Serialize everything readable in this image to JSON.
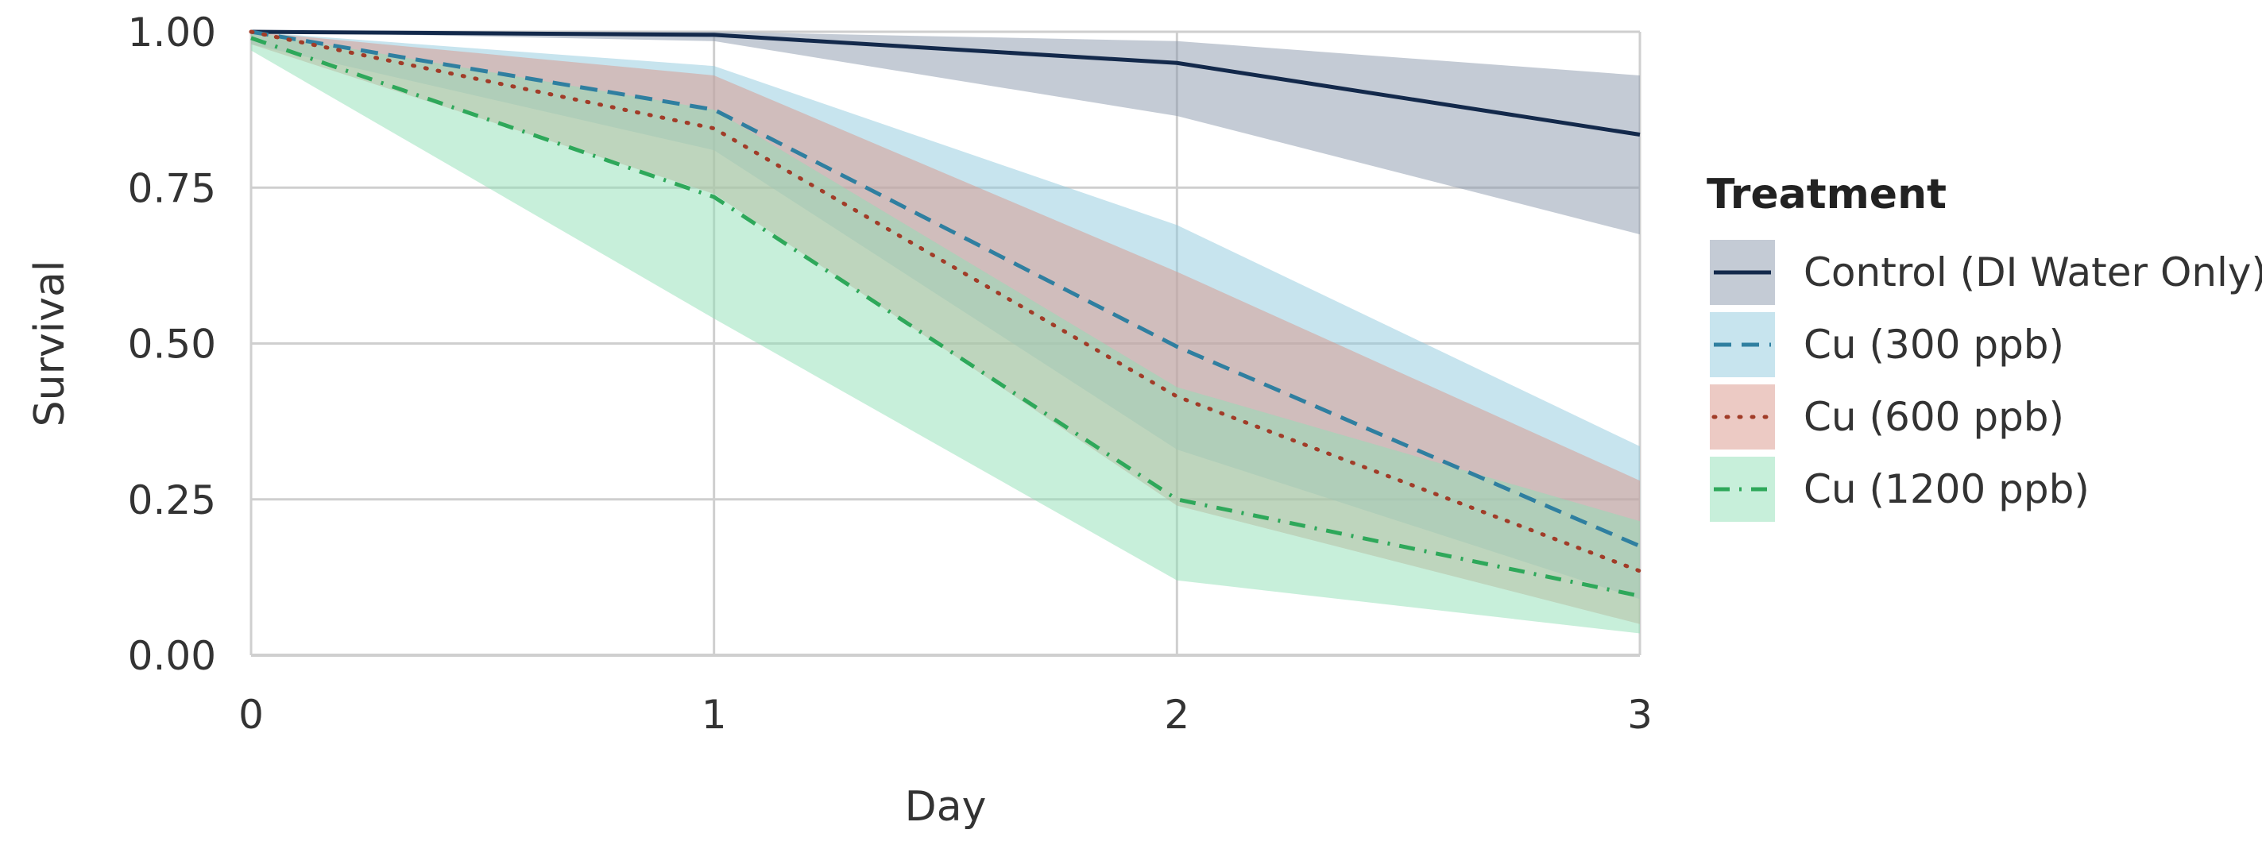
{
  "chart_data": {
    "type": "line",
    "x": [
      0,
      1,
      2,
      3
    ],
    "xlabel": "Day",
    "ylabel": "Survival",
    "xlim": [
      0,
      3
    ],
    "ylim": [
      0,
      1
    ],
    "x_ticks": [
      "0",
      "1",
      "2",
      "3"
    ],
    "y_ticks": [
      "0.00",
      "0.25",
      "0.50",
      "0.75",
      "1.00"
    ],
    "grid": true,
    "legend": {
      "title": "Treatment",
      "position": "right"
    },
    "series": [
      {
        "name": "Control (DI Water Only)",
        "values": [
          1.0,
          0.995,
          0.95,
          0.835
        ],
        "lower": [
          1.0,
          0.985,
          0.865,
          0.675
        ],
        "upper": [
          1.0,
          1.0,
          0.985,
          0.93
        ],
        "line_color": "#13294b",
        "band_color": "#8a97ab",
        "dash": "solid"
      },
      {
        "name": "Cu (300 ppb)",
        "values": [
          1.0,
          0.875,
          0.495,
          0.175
        ],
        "lower": [
          0.98,
          0.81,
          0.33,
          0.09
        ],
        "upper": [
          1.0,
          0.945,
          0.69,
          0.335
        ],
        "line_color": "#2f7fa0",
        "band_color": "#8fcadd",
        "dash": "dashed"
      },
      {
        "name": "Cu (600 ppb)",
        "values": [
          1.0,
          0.845,
          0.415,
          0.135
        ],
        "lower": [
          0.98,
          0.74,
          0.24,
          0.05
        ],
        "upper": [
          1.0,
          0.93,
          0.615,
          0.28
        ],
        "line_color": "#a13c28",
        "band_color": "#d9958a",
        "dash": "dotted"
      },
      {
        "name": "Cu (1200 ppb)",
        "values": [
          0.99,
          0.735,
          0.25,
          0.095
        ],
        "lower": [
          0.97,
          0.54,
          0.12,
          0.035
        ],
        "upper": [
          1.0,
          0.875,
          0.43,
          0.215
        ],
        "line_color": "#2ea85a",
        "band_color": "#8fe0b5",
        "dash": "dashdot"
      }
    ]
  }
}
